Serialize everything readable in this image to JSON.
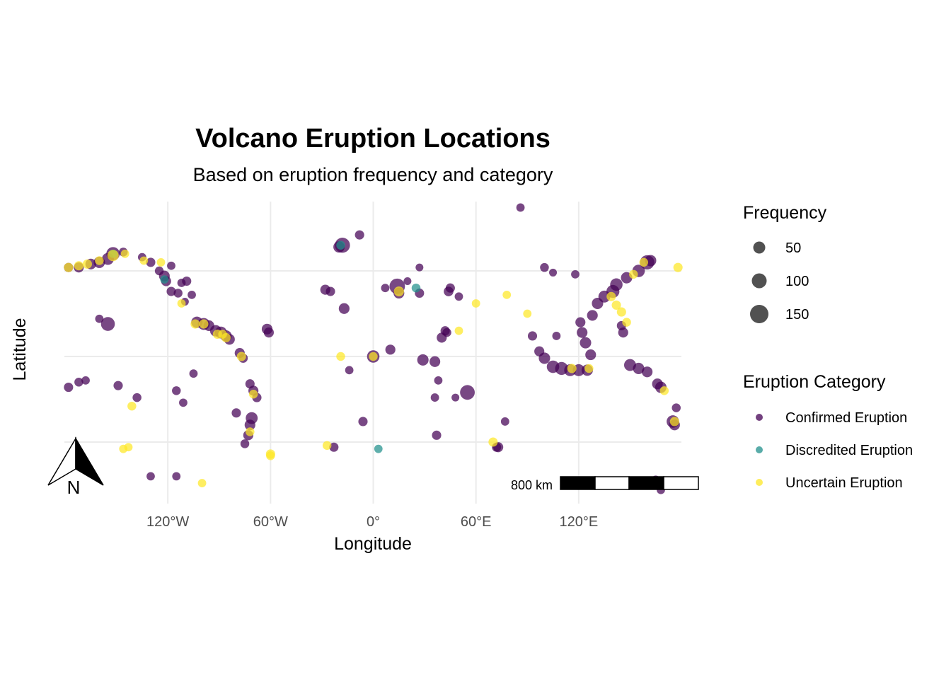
{
  "chart_data": {
    "type": "scatter",
    "title": "Volcano Eruption Locations",
    "subtitle": "Based on eruption frequency and category",
    "xlabel": "Longitude",
    "ylabel": "Latitude",
    "xlim": [
      -180,
      180
    ],
    "ylim": [
      -75,
      90
    ],
    "grid": true,
    "x_ticks": [
      {
        "value": -120,
        "label": "120°W"
      },
      {
        "value": -60,
        "label": "60°W"
      },
      {
        "value": 0,
        "label": "0°"
      },
      {
        "value": 60,
        "label": "60°E"
      },
      {
        "value": 120,
        "label": "120°E"
      }
    ],
    "y_grid_values": [
      50,
      0,
      -50
    ],
    "size_legend": {
      "title": "Frequency",
      "entries": [
        {
          "value": 50,
          "label": "50"
        },
        {
          "value": 100,
          "label": "100"
        },
        {
          "value": 150,
          "label": "150"
        }
      ]
    },
    "color_legend": {
      "title": "Eruption Category",
      "entries": [
        {
          "name": "Confirmed Eruption",
          "color": "#440154"
        },
        {
          "name": "Discredited Eruption",
          "color": "#21908C"
        },
        {
          "name": "Uncertain Eruption",
          "color": "#FDE725"
        }
      ]
    },
    "legend_position": "right",
    "scale_bar": {
      "label": "800 km"
    },
    "north_arrow": {
      "label": "N"
    },
    "series": [
      {
        "name": "Confirmed Eruption",
        "color": "#440154",
        "points": [
          [
            -178,
            52,
            6
          ],
          [
            -172,
            52,
            8
          ],
          [
            -165,
            54,
            10
          ],
          [
            -160,
            55,
            12
          ],
          [
            -155,
            57,
            14
          ],
          [
            -152,
            60,
            20
          ],
          [
            -146,
            61,
            5
          ],
          [
            -135,
            58,
            4
          ],
          [
            -130,
            55,
            6
          ],
          [
            -125,
            50,
            5
          ],
          [
            -122,
            47,
            10
          ],
          [
            -121,
            44,
            8
          ],
          [
            -118,
            38,
            6
          ],
          [
            -114,
            37,
            5
          ],
          [
            -112,
            43,
            4
          ],
          [
            -109,
            44,
            6
          ],
          [
            -106,
            36,
            4
          ],
          [
            -118,
            53,
            4
          ],
          [
            -110,
            32,
            3
          ],
          [
            -155,
            19,
            22
          ],
          [
            -160,
            22,
            4
          ],
          [
            -103,
            20,
            12
          ],
          [
            -99,
            19,
            14
          ],
          [
            -96,
            18,
            10
          ],
          [
            -92,
            15,
            12
          ],
          [
            -89,
            14,
            14
          ],
          [
            -86,
            12,
            12
          ],
          [
            -84,
            10,
            10
          ],
          [
            -78,
            2,
            8
          ],
          [
            -76,
            -1,
            6
          ],
          [
            -72,
            -16,
            6
          ],
          [
            -70,
            -20,
            8
          ],
          [
            -68,
            -24,
            6
          ],
          [
            -71,
            -36,
            14
          ],
          [
            -72,
            -40,
            10
          ],
          [
            -73,
            -46,
            8
          ],
          [
            -75,
            -51,
            5
          ],
          [
            -62,
            16,
            10
          ],
          [
            -61,
            14,
            8
          ],
          [
            -28,
            39,
            8
          ],
          [
            -25,
            38,
            6
          ],
          [
            -17,
            28,
            10
          ],
          [
            -18,
            65,
            28
          ],
          [
            -20,
            64,
            12
          ],
          [
            -8,
            71,
            6
          ],
          [
            -14,
            -8,
            4
          ],
          [
            -23,
            -53,
            6
          ],
          [
            0,
            0,
            16
          ],
          [
            10,
            4,
            8
          ],
          [
            14,
            41,
            30
          ],
          [
            15,
            37,
            10
          ],
          [
            27,
            37,
            6
          ],
          [
            29,
            -2,
            12
          ],
          [
            36,
            -3,
            10
          ],
          [
            40,
            11,
            8
          ],
          [
            42,
            15,
            6
          ],
          [
            43,
            14,
            5
          ],
          [
            45,
            40,
            6
          ],
          [
            44,
            38,
            7
          ],
          [
            50,
            35,
            4
          ],
          [
            38,
            -14,
            4
          ],
          [
            36,
            -24,
            4
          ],
          [
            55,
            -21,
            26
          ],
          [
            72,
            -53,
            6
          ],
          [
            73,
            -53,
            8
          ],
          [
            77,
            -38,
            4
          ],
          [
            37,
            -46,
            6
          ],
          [
            48,
            -24,
            3
          ],
          [
            93,
            12,
            6
          ],
          [
            97,
            3,
            8
          ],
          [
            100,
            -1,
            12
          ],
          [
            105,
            -6,
            16
          ],
          [
            110,
            -7,
            18
          ],
          [
            115,
            -8,
            14
          ],
          [
            120,
            -8,
            14
          ],
          [
            125,
            -8,
            12
          ],
          [
            127,
            1,
            10
          ],
          [
            124,
            8,
            12
          ],
          [
            122,
            14,
            10
          ],
          [
            121,
            20,
            8
          ],
          [
            128,
            24,
            10
          ],
          [
            131,
            31,
            12
          ],
          [
            135,
            35,
            14
          ],
          [
            140,
            38,
            18
          ],
          [
            142,
            42,
            16
          ],
          [
            148,
            46,
            12
          ],
          [
            155,
            50,
            16
          ],
          [
            160,
            55,
            24
          ],
          [
            162,
            56,
            12
          ],
          [
            146,
            14,
            8
          ],
          [
            145,
            18,
            6
          ],
          [
            150,
            -5,
            14
          ],
          [
            155,
            -7,
            12
          ],
          [
            160,
            -9,
            10
          ],
          [
            166,
            -16,
            10
          ],
          [
            168,
            -18,
            12
          ],
          [
            175,
            -38,
            16
          ],
          [
            176,
            -40,
            10
          ],
          [
            177,
            -30,
            5
          ],
          [
            -178,
            -18,
            6
          ],
          [
            -172,
            -15,
            5
          ],
          [
            -168,
            -14,
            4
          ],
          [
            -149,
            -17,
            6
          ],
          [
            -138,
            -24,
            5
          ],
          [
            -111,
            -27,
            4
          ],
          [
            -80,
            -33,
            6
          ],
          [
            -130,
            -70,
            4
          ],
          [
            -115,
            -70,
            4
          ],
          [
            -115,
            -20,
            5
          ],
          [
            -105,
            -10,
            4
          ],
          [
            107,
            12,
            4
          ],
          [
            105,
            49,
            3
          ],
          [
            100,
            52,
            5
          ],
          [
            118,
            48,
            4
          ],
          [
            86,
            87,
            4
          ],
          [
            165,
            -72,
            4
          ],
          [
            168,
            -78,
            4
          ],
          [
            -6,
            -38,
            6
          ],
          [
            7,
            40,
            4
          ],
          [
            20,
            44,
            3
          ],
          [
            27,
            52,
            3
          ]
        ]
      },
      {
        "name": "Discredited Eruption",
        "color": "#21908C",
        "points": [
          [
            -152,
            60,
            4
          ],
          [
            -19,
            65,
            5
          ],
          [
            25,
            40,
            5
          ],
          [
            3,
            -54,
            4
          ],
          [
            -122,
            45,
            4
          ]
        ]
      },
      {
        "name": "Uncertain Eruption",
        "color": "#FDE725",
        "points": [
          [
            -178,
            52,
            6
          ],
          [
            -172,
            53,
            6
          ],
          [
            -167,
            54,
            6
          ],
          [
            -160,
            56,
            5
          ],
          [
            -145,
            60,
            4
          ],
          [
            -134,
            56,
            4
          ],
          [
            -112,
            31,
            4
          ],
          [
            -104,
            19,
            6
          ],
          [
            -91,
            13,
            6
          ],
          [
            -88,
            13,
            5
          ],
          [
            -86,
            11,
            6
          ],
          [
            -77,
            0,
            6
          ],
          [
            -70,
            -22,
            5
          ],
          [
            -72,
            -44,
            5
          ],
          [
            -60,
            -57,
            6
          ],
          [
            -146,
            -54,
            4
          ],
          [
            -143,
            -53,
            4
          ],
          [
            -100,
            -74,
            4
          ],
          [
            -141,
            -29,
            5
          ],
          [
            -19,
            0,
            5
          ],
          [
            0,
            0,
            5
          ],
          [
            15,
            38,
            8
          ],
          [
            60,
            31,
            4
          ],
          [
            50,
            15,
            4
          ],
          [
            78,
            36,
            4
          ],
          [
            116,
            -7,
            6
          ],
          [
            126,
            -7,
            5
          ],
          [
            139,
            35,
            6
          ],
          [
            142,
            30,
            6
          ],
          [
            145,
            26,
            6
          ],
          [
            148,
            20,
            5
          ],
          [
            152,
            48,
            5
          ],
          [
            158,
            55,
            5
          ],
          [
            170,
            -20,
            5
          ],
          [
            176,
            -38,
            6
          ],
          [
            -27,
            -52,
            5
          ],
          [
            70,
            -50,
            6
          ],
          [
            178,
            52,
            6
          ],
          [
            -60,
            -58,
            5
          ],
          [
            90,
            25,
            4
          ],
          [
            -152,
            59,
            12
          ],
          [
            -99,
            19,
            6
          ],
          [
            -124,
            55,
            4
          ]
        ]
      }
    ]
  }
}
